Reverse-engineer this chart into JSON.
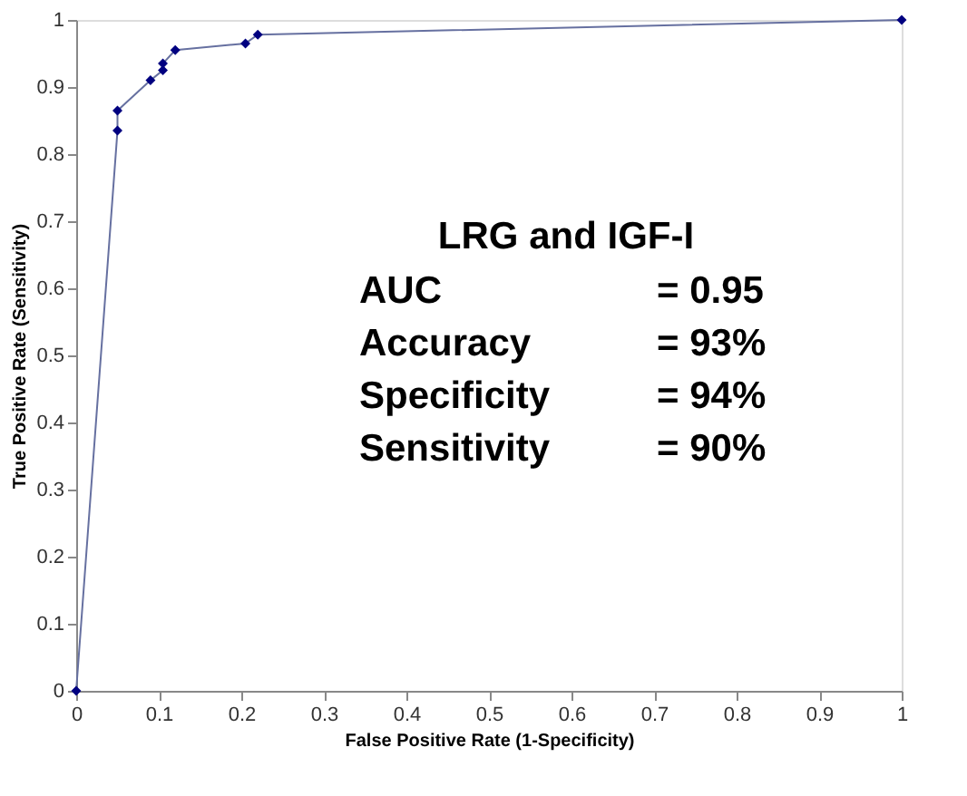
{
  "chart_data": {
    "type": "line",
    "xlabel": "False Positive Rate (1-Specificity)",
    "ylabel": "True Positive Rate (Sensitivity)",
    "x": [
      0,
      0.05,
      0.05,
      0.09,
      0.105,
      0.105,
      0.12,
      0.205,
      0.22,
      1
    ],
    "series": [
      {
        "color": "#000080",
        "values": [
          0,
          0.835,
          0.865,
          0.91,
          0.925,
          0.935,
          0.955,
          0.965,
          0.978,
          1
        ]
      }
    ],
    "marker": "diamond",
    "line_style": "solid",
    "grid": false,
    "legend": false,
    "xlim": [
      0,
      1
    ],
    "ylim": [
      0,
      1
    ],
    "xticks": [
      0,
      0.1,
      0.2,
      0.3,
      0.4,
      0.5,
      0.6,
      0.7,
      0.8,
      0.9,
      1
    ],
    "yticks": [
      0,
      0.1,
      0.2,
      0.3,
      0.4,
      0.5,
      0.6,
      0.7,
      0.8,
      0.9,
      1
    ],
    "annotations": [
      "LRG and IGF-I",
      "AUC",
      "= 0.95",
      "Accuracy",
      "= 93%",
      "Specificity",
      "= 94%",
      "Sensitivity",
      "= 90%"
    ]
  }
}
